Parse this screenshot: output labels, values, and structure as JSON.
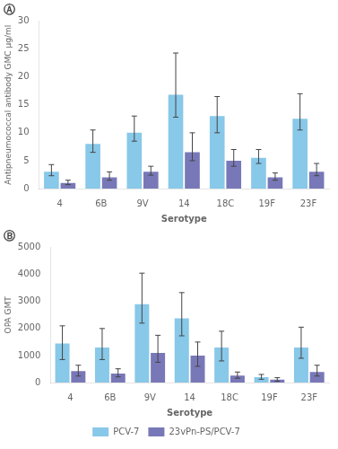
{
  "chart_data": [
    {
      "type": "bar",
      "title": "Ⓐ",
      "xlabel": "Serotype",
      "ylabel": "Antipneumococcal antibody GMC μg/ml",
      "categories": [
        "4",
        "6B",
        "9V",
        "14",
        "18C",
        "19F",
        "23F"
      ],
      "series": [
        {
          "name": "PCV-7",
          "color": "#88c8e8",
          "values": [
            3.0,
            8.0,
            10.0,
            16.8,
            13.0,
            5.5,
            12.5
          ],
          "err_lo": [
            0.7,
            1.5,
            1.5,
            4.0,
            3.0,
            1.0,
            2.0
          ],
          "err_hi": [
            1.3,
            2.5,
            3.0,
            7.5,
            3.5,
            1.5,
            4.5
          ]
        },
        {
          "name": "23vPn-PS/PCV-7",
          "color": "#7878b8",
          "values": [
            1.0,
            2.0,
            3.0,
            6.5,
            5.0,
            2.0,
            3.0
          ],
          "err_lo": [
            0.3,
            0.5,
            0.6,
            1.5,
            1.0,
            0.5,
            0.7
          ],
          "err_hi": [
            0.5,
            1.0,
            1.0,
            3.5,
            2.0,
            0.8,
            1.5
          ]
        }
      ],
      "ylim": [
        0,
        30
      ],
      "yticks": [
        0,
        5,
        10,
        15,
        20,
        25,
        30
      ],
      "grid": false,
      "legend": "none"
    },
    {
      "type": "bar",
      "title": "Ⓑ",
      "xlabel": "Serotype",
      "ylabel": "OPA GMT",
      "categories": [
        "4",
        "6B",
        "9V",
        "14",
        "18C",
        "19F",
        "23F"
      ],
      "series": [
        {
          "name": "PCV-7",
          "color": "#88c8e8",
          "values": [
            1450,
            1300,
            2900,
            2380,
            1300,
            200,
            1300
          ],
          "err_lo": [
            600,
            450,
            700,
            650,
            500,
            80,
            400
          ],
          "err_hi": [
            650,
            700,
            1150,
            950,
            600,
            100,
            750
          ]
        },
        {
          "name": "23vPn-PS/PCV-7",
          "color": "#7878b8",
          "values": [
            420,
            330,
            1100,
            1000,
            260,
            110,
            390
          ],
          "err_lo": [
            180,
            120,
            350,
            400,
            100,
            60,
            150
          ],
          "err_hi": [
            220,
            180,
            650,
            500,
            130,
            70,
            250
          ]
        }
      ],
      "ylim": [
        0,
        5000
      ],
      "yticks": [
        0,
        1000,
        2000,
        3000,
        4000,
        5000
      ],
      "grid": false,
      "legend": "bottom"
    }
  ]
}
